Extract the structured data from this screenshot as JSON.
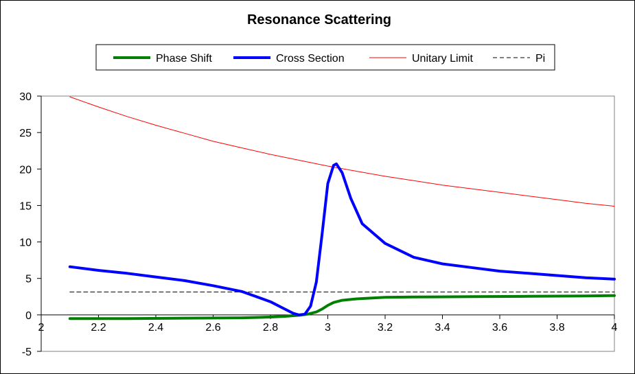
{
  "chart_data": {
    "type": "line",
    "title": "Resonance Scattering",
    "xlabel": "",
    "ylabel": "",
    "xlim": [
      2,
      4
    ],
    "ylim": [
      -5,
      30
    ],
    "x_ticks": [
      2,
      2.2,
      2.4,
      2.6,
      2.8,
      3,
      3.2,
      3.4,
      3.6,
      3.8,
      4
    ],
    "y_ticks": [
      -5,
      0,
      5,
      10,
      15,
      20,
      25,
      30
    ],
    "x_tick_labels": [
      "2",
      "2.2",
      "2.4",
      "2.6",
      "2.8",
      "3",
      "3.2",
      "3.4",
      "3.6",
      "3.8",
      "4"
    ],
    "y_tick_labels": [
      "-5",
      "0",
      "5",
      "10",
      "15",
      "20",
      "25",
      "30"
    ],
    "grid": false,
    "legend_position": "top",
    "series": [
      {
        "name": "Phase Shift",
        "color": "#008000",
        "style": "solid-thick",
        "x": [
          2.1,
          2.3,
          2.5,
          2.7,
          2.8,
          2.85,
          2.9,
          2.93,
          2.96,
          2.98,
          3.0,
          3.02,
          3.05,
          3.1,
          3.15,
          3.2,
          3.3,
          3.5,
          3.7,
          3.9,
          4.0
        ],
        "y": [
          -0.5,
          -0.5,
          -0.45,
          -0.4,
          -0.3,
          -0.2,
          -0.05,
          0.1,
          0.4,
          0.8,
          1.3,
          1.7,
          2.0,
          2.2,
          2.3,
          2.4,
          2.45,
          2.5,
          2.55,
          2.6,
          2.65
        ]
      },
      {
        "name": "Cross Section",
        "color": "#0000ff",
        "style": "solid-thick",
        "x": [
          2.1,
          2.2,
          2.3,
          2.4,
          2.5,
          2.6,
          2.7,
          2.8,
          2.85,
          2.88,
          2.9,
          2.92,
          2.94,
          2.96,
          2.98,
          3.0,
          3.02,
          3.03,
          3.05,
          3.08,
          3.12,
          3.2,
          3.3,
          3.4,
          3.5,
          3.6,
          3.7,
          3.8,
          3.9,
          4.0
        ],
        "y": [
          6.6,
          6.1,
          5.7,
          5.2,
          4.7,
          4.0,
          3.2,
          1.8,
          0.8,
          0.2,
          0.0,
          0.1,
          1.2,
          4.5,
          11.0,
          18.0,
          20.5,
          20.7,
          19.5,
          16.0,
          12.5,
          9.8,
          7.9,
          7.0,
          6.5,
          6.0,
          5.7,
          5.4,
          5.1,
          4.9
        ]
      },
      {
        "name": "Unitary Limit",
        "color": "#ff0000",
        "style": "solid-thin",
        "x": [
          2.1,
          2.2,
          2.3,
          2.4,
          2.5,
          2.6,
          2.7,
          2.8,
          2.9,
          3.0,
          3.1,
          3.2,
          3.3,
          3.4,
          3.5,
          3.6,
          3.7,
          3.8,
          3.9,
          4.0
        ],
        "y": [
          29.9,
          28.5,
          27.2,
          26.0,
          24.9,
          23.8,
          22.9,
          22.0,
          21.2,
          20.4,
          19.7,
          19.0,
          18.4,
          17.8,
          17.3,
          16.8,
          16.3,
          15.8,
          15.3,
          14.9
        ]
      },
      {
        "name": "Pi",
        "color": "#000000",
        "style": "dashed",
        "x": [
          2.1,
          4.0
        ],
        "y": [
          3.14159,
          3.14159
        ]
      }
    ]
  }
}
